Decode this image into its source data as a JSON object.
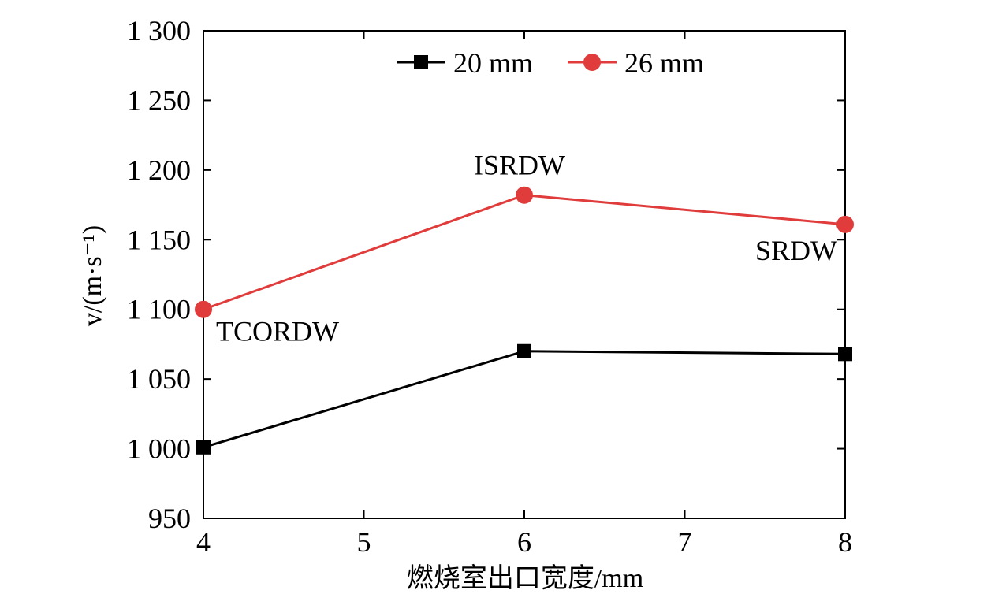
{
  "chart_data": {
    "type": "line",
    "xlabel": "燃烧室出口宽度/mm",
    "ylabel": "v/(m·s⁻¹)",
    "xlim": [
      4,
      8
    ],
    "ylim": [
      950,
      1300
    ],
    "x_ticks": [
      "4",
      "5",
      "6",
      "7",
      "8"
    ],
    "y_ticks": [
      "950",
      "1 000",
      "1 050",
      "1 100",
      "1 150",
      "1 200",
      "1 250",
      "1 300"
    ],
    "x": [
      4,
      6,
      8
    ],
    "series": [
      {
        "name": "20 mm",
        "values": [
          1001,
          1070,
          1068
        ],
        "color": "#000000",
        "marker": "square"
      },
      {
        "name": "26 mm",
        "values": [
          1100,
          1182,
          1161
        ],
        "color": "#e03c3c",
        "marker": "circle"
      }
    ],
    "annotations": [
      {
        "text": "TCORDW",
        "x": 4,
        "y": 1100
      },
      {
        "text": "ISRDW",
        "x": 6,
        "y": 1182
      },
      {
        "text": "SRDW",
        "x": 8,
        "y": 1161
      }
    ],
    "legend_position": "top-center",
    "grid": false
  }
}
